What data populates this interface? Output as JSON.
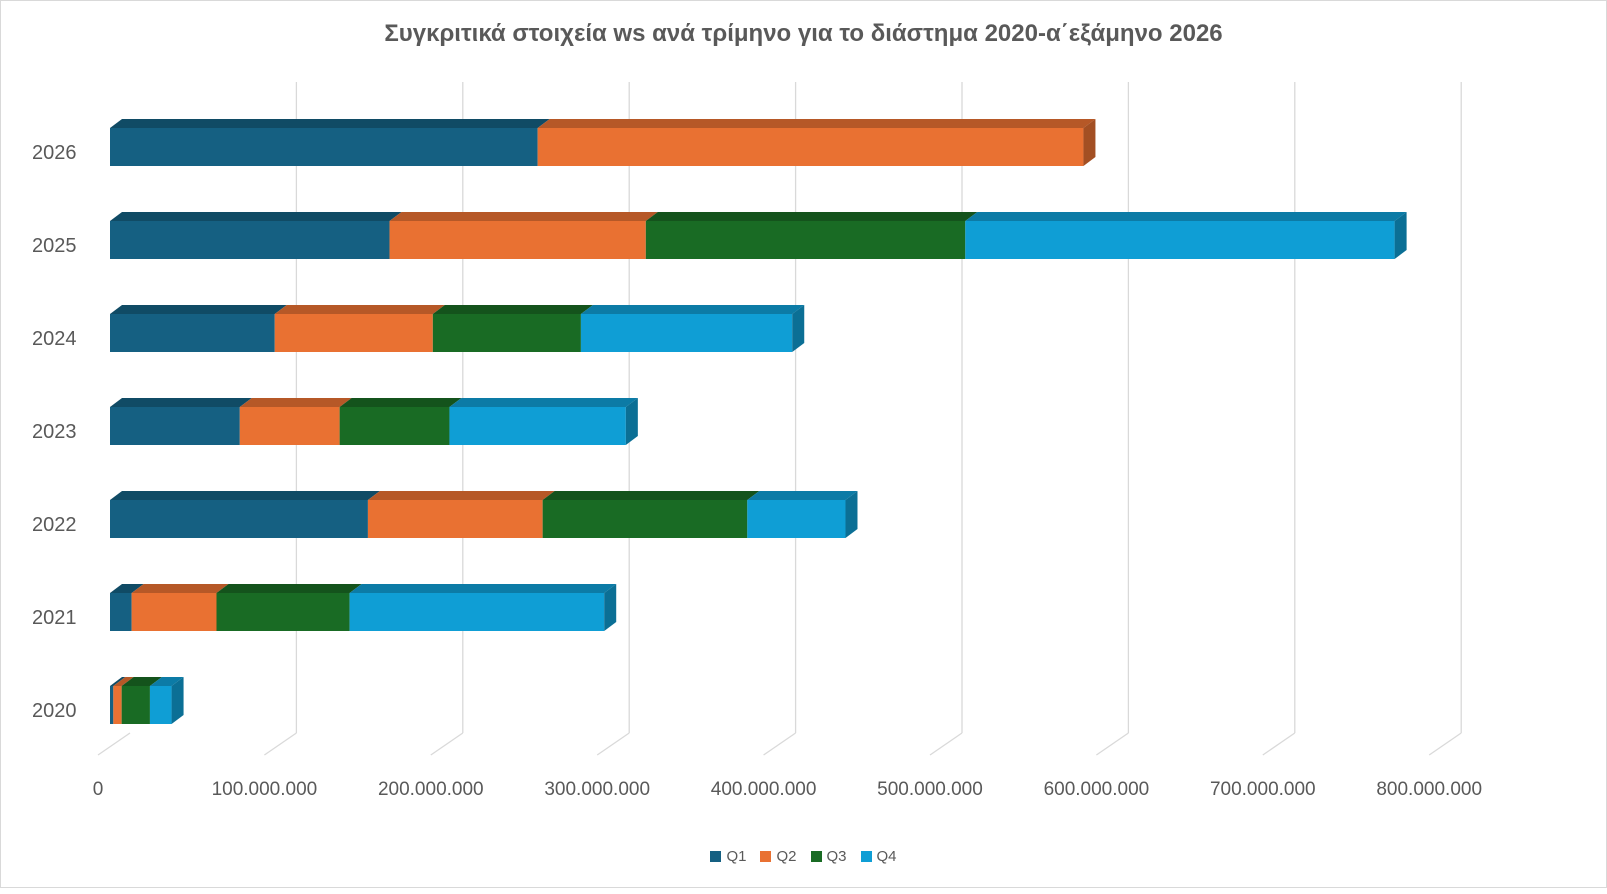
{
  "chart_data": {
    "type": "bar",
    "orientation": "horizontal",
    "stacked": true,
    "style_3d": true,
    "title": "Συγκριτικά στοιχεία ws ανά τρίμηνο για το διάστημα 2020-α΄εξάμηνο 2026",
    "categories": [
      "2020",
      "2021",
      "2022",
      "2023",
      "2024",
      "2025",
      "2026"
    ],
    "series": [
      {
        "name": "Q1",
        "color": "#156082",
        "values": [
          2000000,
          13000000,
          155000000,
          78000000,
          99000000,
          168000000,
          257000000
        ]
      },
      {
        "name": "Q2",
        "color": "#E97132",
        "values": [
          5000000,
          51000000,
          105000000,
          60000000,
          95000000,
          154000000,
          328000000
        ]
      },
      {
        "name": "Q3",
        "color": "#196B24",
        "values": [
          17000000,
          80000000,
          123000000,
          66000000,
          89000000,
          192000000,
          0
        ]
      },
      {
        "name": "Q4",
        "color": "#0F9ED5",
        "values": [
          13000000,
          153000000,
          59000000,
          106000000,
          127000000,
          258000000,
          0
        ]
      }
    ],
    "xlim": [
      0,
      800000000
    ],
    "x_ticks": [
      0,
      100000000,
      200000000,
      300000000,
      400000000,
      500000000,
      600000000,
      700000000,
      800000000
    ],
    "x_tick_labels": [
      "0",
      "100.000.000",
      "200.000.000",
      "300.000.000",
      "400.000.000",
      "500.000.000",
      "600.000.000",
      "700.000.000",
      "800.000.000"
    ],
    "grid": true,
    "legend_position": "bottom"
  }
}
